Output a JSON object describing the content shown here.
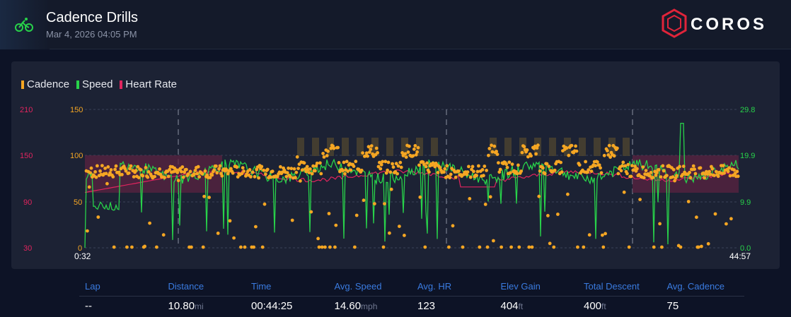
{
  "header": {
    "title": "Cadence Drills",
    "datetime": "Mar 4, 2026 04:05 PM",
    "brand": "COROS",
    "activity_icon": "bike-icon"
  },
  "legend": [
    {
      "label": "Cadence",
      "color": "#f5a623"
    },
    {
      "label": "Speed",
      "color": "#28d24a"
    },
    {
      "label": "Heart Rate",
      "color": "#e0245e"
    }
  ],
  "chart_data": {
    "type": "line",
    "x_start_label": "0:32",
    "x_end_label": "44:57",
    "axes": {
      "heart_rate": {
        "ticks": [
          "210",
          "150",
          "90",
          "30"
        ],
        "color": "#e0245e"
      },
      "cadence": {
        "ticks": [
          "150",
          "100",
          "50",
          "0"
        ],
        "color": "#f5a623"
      },
      "speed": {
        "ticks": [
          "29.8",
          "19.9",
          "9.9",
          "0.0"
        ],
        "color": "#28d24a"
      }
    },
    "grid": true,
    "legend_placement": "top-left",
    "series": [
      {
        "name": "Cadence",
        "kind": "scatter",
        "color": "#f5a623"
      },
      {
        "name": "Speed",
        "kind": "line",
        "color": "#28d24a"
      },
      {
        "name": "Heart Rate",
        "kind": "line",
        "color": "#e0245e"
      }
    ]
  },
  "stats": {
    "headers": [
      "Lap",
      "Distance",
      "Time",
      "Avg. Speed",
      "Avg. HR",
      "Elev Gain",
      "Total Descent",
      "Avg. Cadence"
    ],
    "values": [
      {
        "value": "--",
        "unit": ""
      },
      {
        "value": "10.80",
        "unit": "mi"
      },
      {
        "value": "00:44:25",
        "unit": ""
      },
      {
        "value": "14.60",
        "unit": "mph"
      },
      {
        "value": "123",
        "unit": ""
      },
      {
        "value": "404",
        "unit": "ft"
      },
      {
        "value": "400",
        "unit": "ft"
      },
      {
        "value": "75",
        "unit": ""
      }
    ]
  }
}
